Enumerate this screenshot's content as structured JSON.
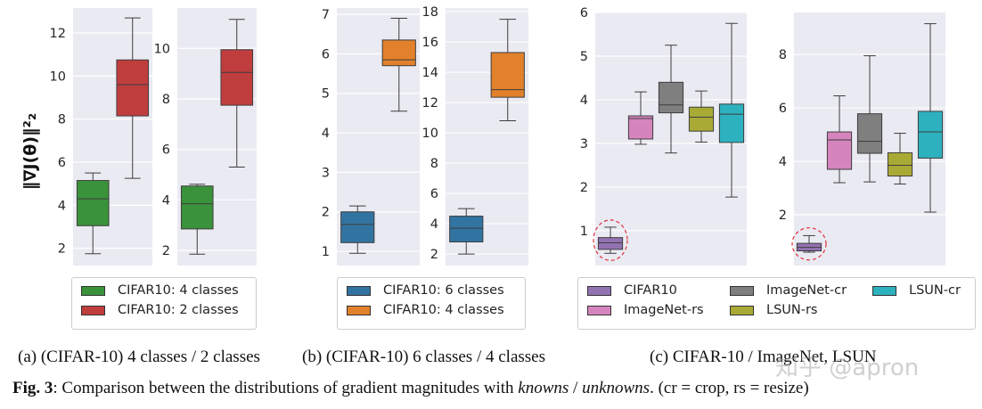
{
  "ylabel": "‖∇J(θ)‖²₂",
  "colors": {
    "panel_bg": "#eaeaf2",
    "grid": "#ffffff",
    "highlight_ellipse": "#e0303a"
  },
  "chart_data": [
    {
      "type": "box",
      "id": "a1",
      "ylim": [
        1.2,
        13.16
      ],
      "yticks": [
        2,
        4,
        6,
        8,
        10,
        12
      ],
      "grid": true,
      "boxes": [
        {
          "name": "CIFAR10: 4 classes",
          "color": "#3a923a",
          "whislo": 1.75,
          "q1": 3.05,
          "med": 4.3,
          "q3": 5.15,
          "whishi": 5.5
        },
        {
          "name": "CIFAR10: 2 classes",
          "color": "#c03d3e",
          "whislo": 5.25,
          "q1": 8.15,
          "med": 9.6,
          "q3": 10.75,
          "whishi": 12.7
        }
      ]
    },
    {
      "type": "box",
      "id": "a2",
      "ylim": [
        1.4,
        11.6
      ],
      "yticks": [
        2,
        4,
        6,
        8,
        10
      ],
      "grid": true,
      "boxes": [
        {
          "name": "CIFAR10: 4 classes",
          "color": "#3a923a",
          "whislo": 1.85,
          "q1": 2.85,
          "med": 3.85,
          "q3": 4.55,
          "whishi": 4.62
        },
        {
          "name": "CIFAR10: 2 classes",
          "color": "#c03d3e",
          "whislo": 5.3,
          "q1": 7.75,
          "med": 9.05,
          "q3": 9.95,
          "whishi": 11.15
        }
      ]
    },
    {
      "type": "box",
      "id": "b1",
      "ylim": [
        0.64,
        7.16
      ],
      "yticks": [
        1,
        2,
        3,
        4,
        5,
        6,
        7
      ],
      "grid": true,
      "boxes": [
        {
          "name": "CIFAR10: 6 classes",
          "color": "#3274a1",
          "whislo": 0.95,
          "q1": 1.22,
          "med": 1.68,
          "q3": 2.0,
          "whishi": 2.15
        },
        {
          "name": "CIFAR10: 4 classes",
          "color": "#e1812c",
          "whislo": 4.55,
          "q1": 5.7,
          "med": 5.85,
          "q3": 6.35,
          "whishi": 6.9
        }
      ]
    },
    {
      "type": "box",
      "id": "b2",
      "ylim": [
        1.24,
        18.24
      ],
      "yticks": [
        2,
        4,
        6,
        8,
        10,
        12,
        14,
        16,
        18
      ],
      "grid": true,
      "boxes": [
        {
          "name": "CIFAR10: 6 classes",
          "color": "#3274a1",
          "whislo": 2.0,
          "q1": 2.8,
          "med": 3.7,
          "q3": 4.5,
          "whishi": 5.0
        },
        {
          "name": "CIFAR10: 4 classes",
          "color": "#e1812c",
          "whislo": 10.8,
          "q1": 12.35,
          "med": 12.85,
          "q3": 15.3,
          "whishi": 17.5
        }
      ]
    },
    {
      "type": "box",
      "id": "c1",
      "ylim": [
        0.2,
        6.0
      ],
      "yticks": [
        1,
        2,
        3,
        4,
        5,
        6
      ],
      "grid": true,
      "highlight": "CIFAR10",
      "boxes": [
        {
          "name": "CIFAR10",
          "color": "#9372b2",
          "whislo": 0.48,
          "q1": 0.57,
          "med": 0.72,
          "q3": 0.84,
          "whishi": 1.08
        },
        {
          "name": "ImageNet-rs",
          "color": "#d684bd",
          "whislo": 2.98,
          "q1": 3.1,
          "med": 3.57,
          "q3": 3.63,
          "whishi": 4.18
        },
        {
          "name": "ImageNet-cr",
          "color": "#7f7f7f",
          "whislo": 2.78,
          "q1": 3.7,
          "med": 3.88,
          "q3": 4.4,
          "whishi": 5.25
        },
        {
          "name": "LSUN-rs",
          "color": "#a9aa35",
          "whislo": 3.03,
          "q1": 3.28,
          "med": 3.6,
          "q3": 3.83,
          "whishi": 4.2
        },
        {
          "name": "LSUN-cr",
          "color": "#2eb1be",
          "whislo": 1.77,
          "q1": 3.02,
          "med": 3.67,
          "q3": 3.9,
          "whishi": 5.75
        }
      ]
    },
    {
      "type": "box",
      "id": "c2",
      "ylim": [
        0.1,
        9.57
      ],
      "yticks": [
        2,
        4,
        6,
        8
      ],
      "grid": true,
      "highlight": "CIFAR10",
      "boxes": [
        {
          "name": "CIFAR10",
          "color": "#9372b2",
          "whislo": 0.6,
          "q1": 0.65,
          "med": 0.78,
          "q3": 0.93,
          "whishi": 1.22
        },
        {
          "name": "ImageNet-rs",
          "color": "#d684bd",
          "whislo": 3.2,
          "q1": 3.7,
          "med": 4.8,
          "q3": 5.1,
          "whishi": 6.45
        },
        {
          "name": "ImageNet-cr",
          "color": "#7f7f7f",
          "whislo": 3.23,
          "q1": 4.3,
          "med": 4.75,
          "q3": 5.78,
          "whishi": 7.95
        },
        {
          "name": "LSUN-rs",
          "color": "#a9aa35",
          "whislo": 3.15,
          "q1": 3.45,
          "med": 3.85,
          "q3": 4.32,
          "whishi": 5.05
        },
        {
          "name": "LSUN-cr",
          "color": "#2eb1be",
          "whislo": 2.1,
          "q1": 4.12,
          "med": 5.1,
          "q3": 5.87,
          "whishi": 9.15
        }
      ]
    }
  ],
  "legends": {
    "a": [
      {
        "label": "CIFAR10: 4 classes",
        "color": "#3a923a"
      },
      {
        "label": "CIFAR10: 2 classes",
        "color": "#c03d3e"
      }
    ],
    "b": [
      {
        "label": "CIFAR10: 6 classes",
        "color": "#3274a1"
      },
      {
        "label": "CIFAR10: 4 classes",
        "color": "#e1812c"
      }
    ],
    "c": [
      {
        "label": "CIFAR10",
        "color": "#9372b2"
      },
      {
        "label": "ImageNet-rs",
        "color": "#d684bd"
      },
      {
        "label": "ImageNet-cr",
        "color": "#7f7f7f"
      },
      {
        "label": "LSUN-rs",
        "color": "#a9aa35"
      },
      {
        "label": "LSUN-cr",
        "color": "#2eb1be"
      }
    ]
  },
  "captions": {
    "a": "(a) (CIFAR-10) 4 classes / 2 classes",
    "b": "(b) (CIFAR-10) 6 classes / 4 classes",
    "c": "(c) CIFAR-10 / ImageNet, LSUN",
    "fig_label": "Fig. 3",
    "fig_text_1": ": Comparison between the distributions of gradient magnitudes with ",
    "knowns": "knowns",
    "slash": " / ",
    "unknowns": "unknowns",
    "fig_text_2": ". (cr = crop, rs = resize)"
  },
  "watermark": "知乎 @apron"
}
